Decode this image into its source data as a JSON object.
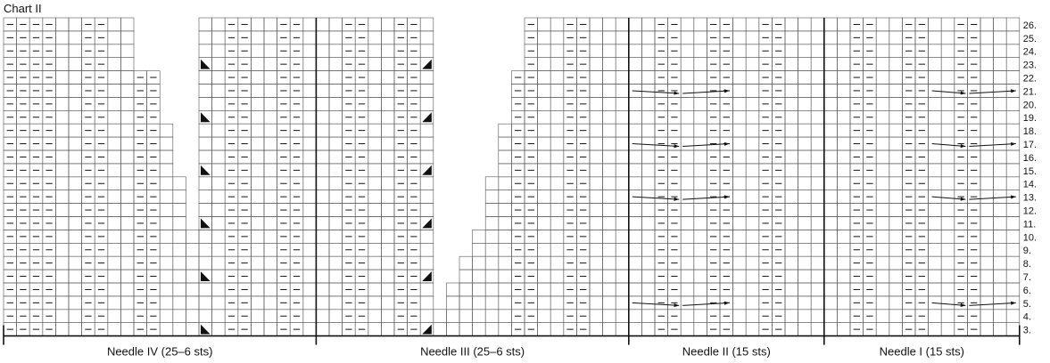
{
  "chart": {
    "title": "Chart II",
    "row_labels": [
      "3.",
      "4.",
      "5.",
      "6.",
      "7.",
      "8.",
      "9.",
      "10.",
      "11.",
      "12.",
      "13.",
      "14.",
      "15.",
      "16.",
      "17.",
      "18.",
      "19.",
      "20.",
      "21.",
      "22.",
      "23.",
      "24.",
      "25.",
      "26."
    ],
    "needles": [
      {
        "label": "Needle IV (25–6 sts)"
      },
      {
        "label": "Needle III (25–6 sts)"
      },
      {
        "label": "Needle II (15 sts)"
      },
      {
        "label": "Needle I (15 sts)"
      }
    ],
    "symbols": {
      "purl": "–",
      "bead_dots": "• •"
    },
    "colors": {
      "grid": "#555555",
      "ink": "#111111",
      "background": "#ffffff"
    }
  }
}
